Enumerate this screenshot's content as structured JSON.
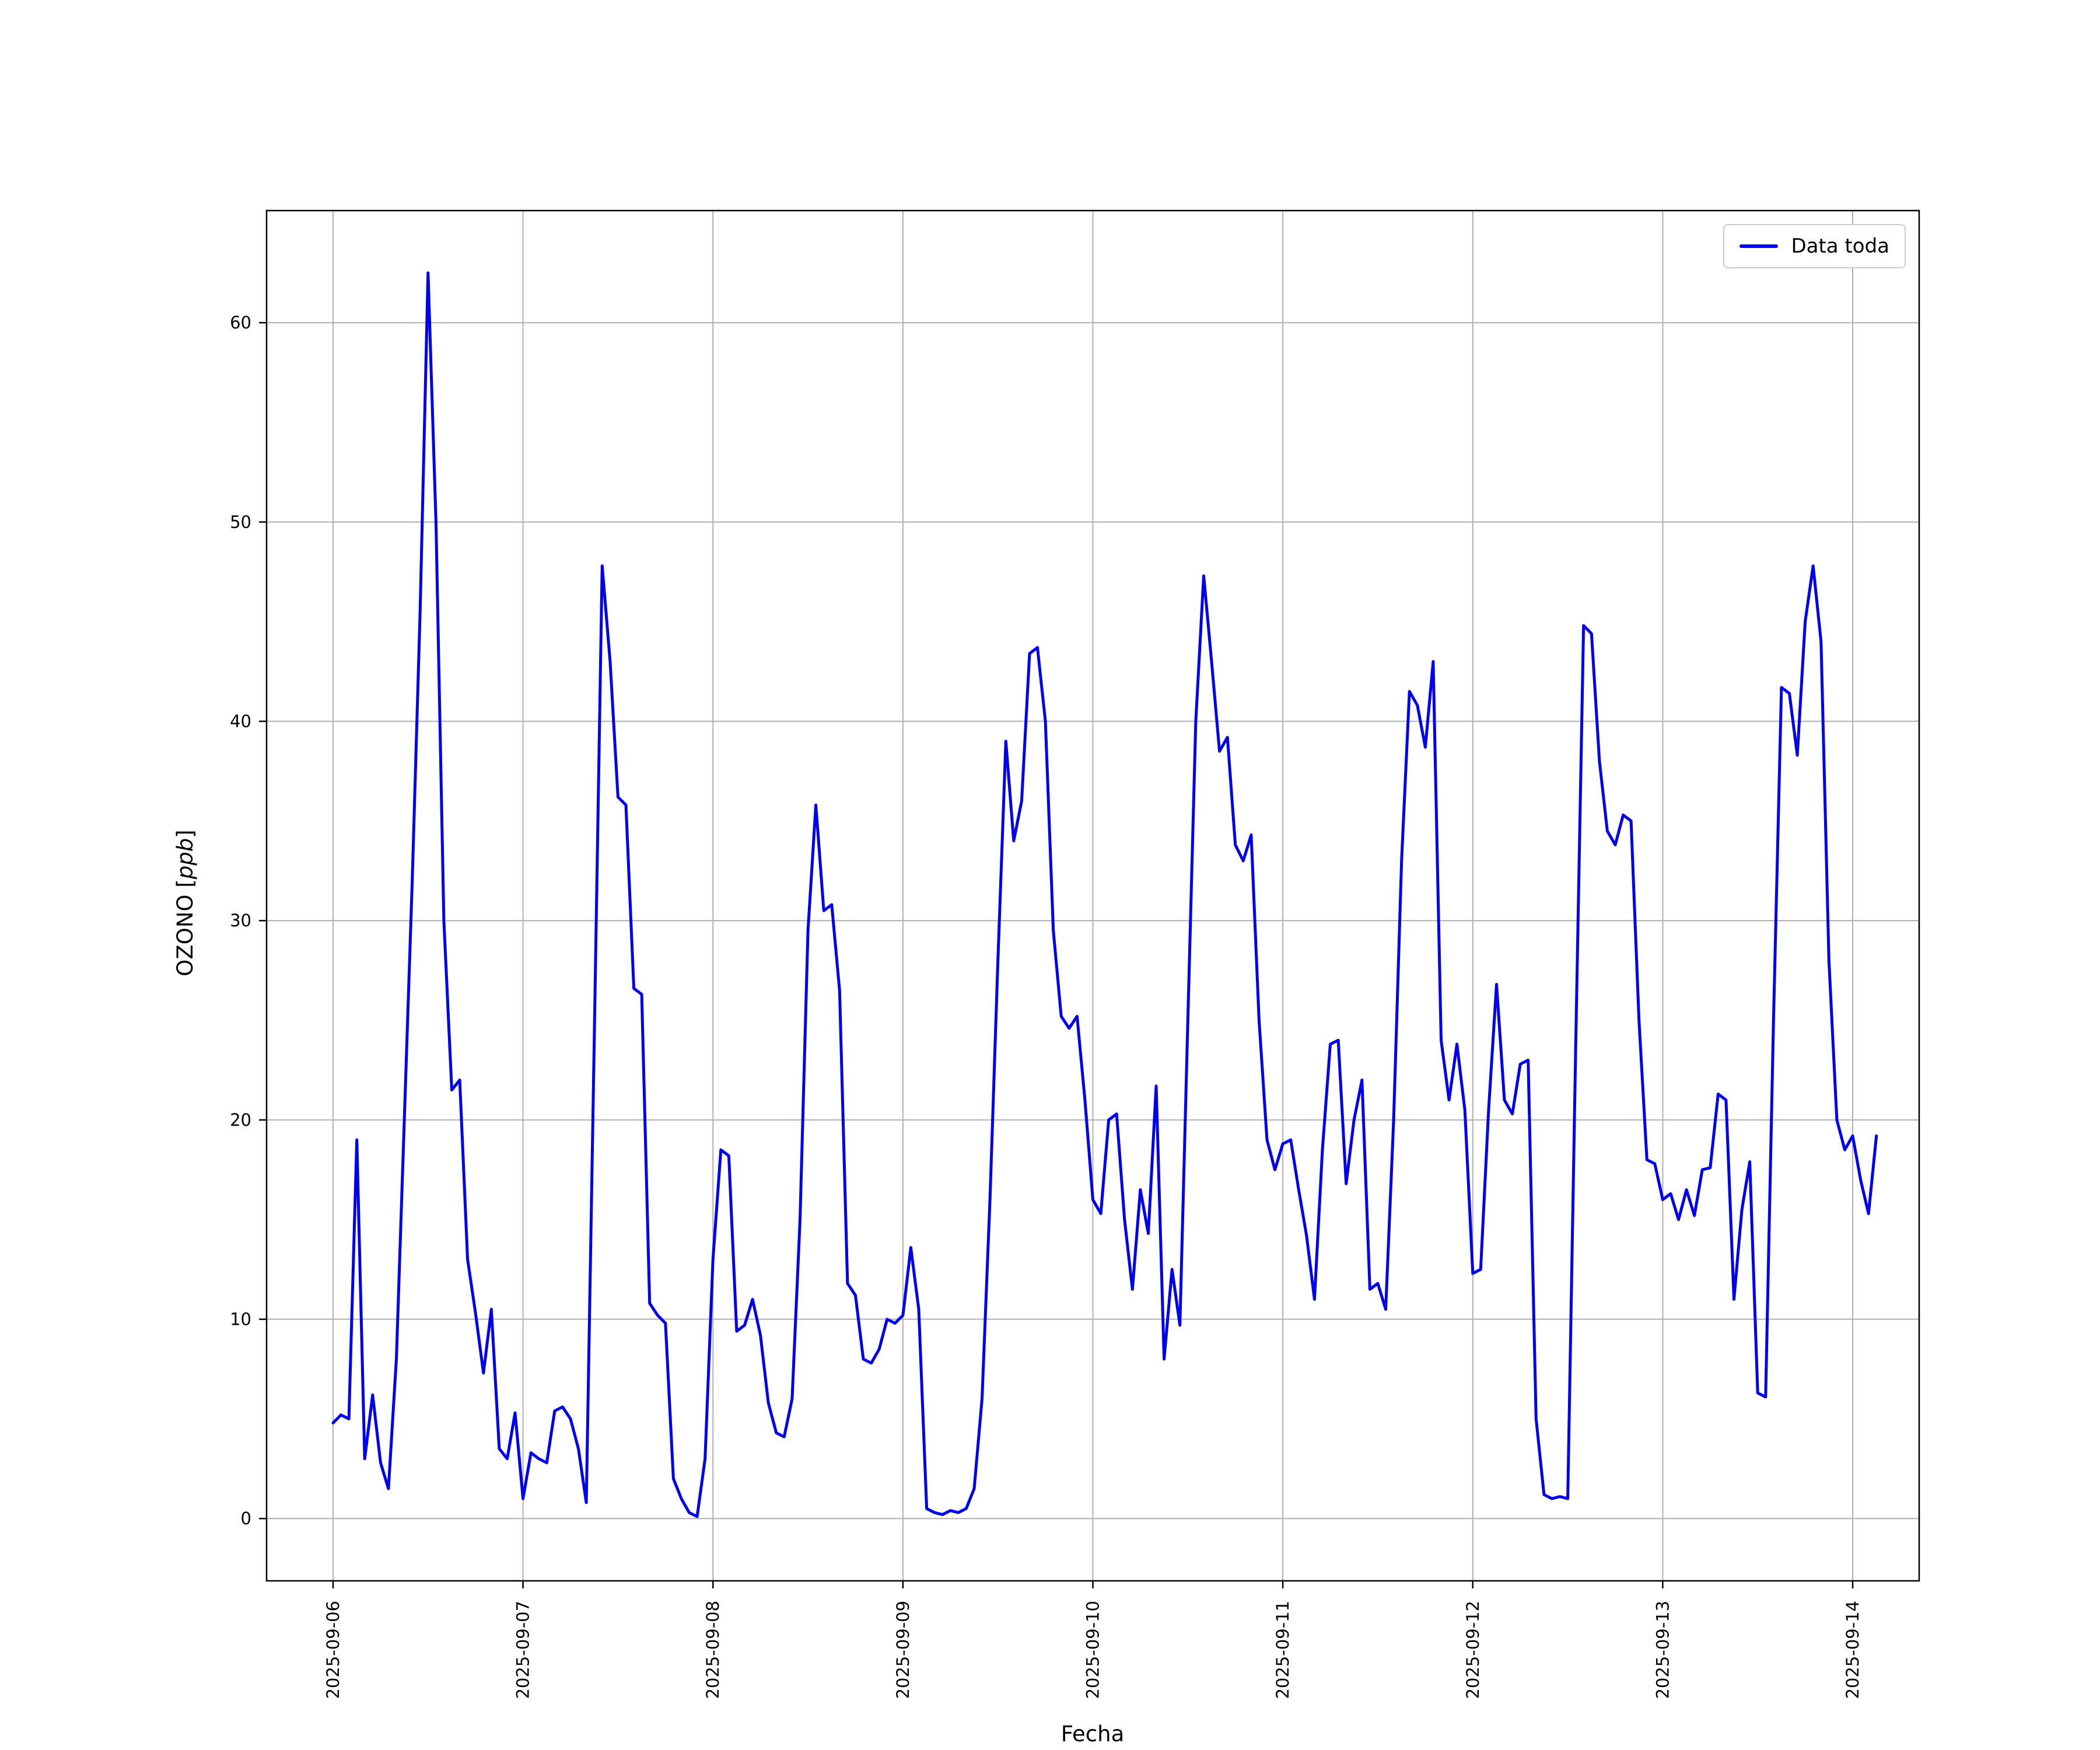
{
  "figure": {
    "background": "#ffffff",
    "grid_color": "#b0b0b0"
  },
  "chart_data": {
    "type": "line",
    "title": "",
    "xlabel": "Fecha",
    "ylabel": "OZONO [ppb]",
    "ylabel_parts": {
      "prefix": "OZONO [",
      "italic": "ppb",
      "suffix": "]"
    },
    "grid": true,
    "legend_position": "upper right",
    "legend": [
      {
        "label": "Data toda",
        "color": "#0000ee"
      }
    ],
    "x_tick_labels": [
      "2025-09-06",
      "2025-09-07",
      "2025-09-08",
      "2025-09-09",
      "2025-09-10",
      "2025-09-11",
      "2025-09-12",
      "2025-09-13",
      "2025-09-14"
    ],
    "x_tick_positions_days": [
      0,
      1,
      2,
      3,
      4,
      5,
      6,
      7,
      8
    ],
    "yticks": [
      0,
      10,
      20,
      30,
      40,
      50,
      60
    ],
    "y_tick_labels": [
      "0",
      "10",
      "20",
      "30",
      "40",
      "50",
      "60"
    ],
    "xlim_days": [
      -0.35,
      8.35
    ],
    "ylim": [
      -3.125,
      65.625
    ],
    "sampling": "hourly",
    "start_date": "2025-09-06",
    "series": [
      {
        "name": "Data toda",
        "color": "#0000ee",
        "values": [
          4.8,
          5.2,
          5.0,
          19.0,
          3.0,
          6.2,
          2.8,
          1.5,
          8.0,
          20.0,
          32.0,
          45.5,
          62.5,
          50.0,
          30.0,
          21.5,
          22.0,
          13.0,
          10.3,
          7.3,
          10.5,
          3.5,
          3.0,
          5.3,
          1.0,
          3.3,
          3.0,
          2.8,
          5.4,
          5.6,
          5.0,
          3.5,
          0.8,
          24.0,
          47.8,
          43.0,
          36.2,
          35.8,
          26.6,
          26.3,
          10.8,
          10.2,
          9.8,
          2.0,
          1.0,
          0.3,
          0.1,
          3.0,
          13.0,
          18.5,
          18.2,
          9.4,
          9.7,
          11.0,
          9.2,
          5.8,
          4.3,
          4.1,
          6.0,
          15.0,
          29.5,
          35.8,
          30.5,
          30.8,
          26.5,
          11.8,
          11.2,
          8.0,
          7.8,
          8.5,
          10.0,
          9.8,
          10.2,
          13.6,
          10.5,
          0.5,
          0.3,
          0.2,
          0.4,
          0.3,
          0.5,
          1.5,
          6.0,
          16.0,
          28.0,
          39.0,
          34.0,
          36.0,
          43.4,
          43.7,
          40.0,
          29.5,
          25.2,
          24.6,
          25.2,
          21.0,
          16.0,
          15.3,
          20.0,
          20.3,
          15.0,
          11.5,
          16.5,
          14.3,
          21.7,
          8.0,
          12.5,
          9.7,
          25.0,
          40.0,
          47.3,
          43.0,
          38.5,
          39.2,
          33.8,
          33.0,
          34.3,
          25.0,
          19.0,
          17.5,
          18.8,
          19.0,
          16.5,
          14.2,
          11.0,
          18.5,
          23.8,
          24.0,
          16.8,
          20.0,
          22.0,
          11.5,
          11.8,
          10.5,
          20.0,
          33.0,
          41.5,
          40.8,
          38.7,
          43.0,
          24.0,
          21.0,
          23.8,
          20.5,
          12.3,
          12.5,
          20.5,
          26.8,
          21.0,
          20.3,
          22.8,
          23.0,
          5.0,
          1.2,
          1.0,
          1.1,
          1.0,
          23.5,
          44.8,
          44.4,
          38.0,
          34.5,
          33.8,
          35.3,
          35.0,
          25.0,
          18.0,
          17.8,
          16.0,
          16.3,
          15.0,
          16.5,
          15.2,
          17.5,
          17.6,
          21.3,
          21.0,
          11.0,
          15.5,
          17.9,
          6.3,
          6.1,
          25.0,
          41.7,
          41.4,
          38.3,
          45.0,
          47.8,
          44.0,
          28.0,
          20.0,
          18.5,
          19.2,
          17.0,
          15.3,
          19.2
        ]
      }
    ]
  }
}
